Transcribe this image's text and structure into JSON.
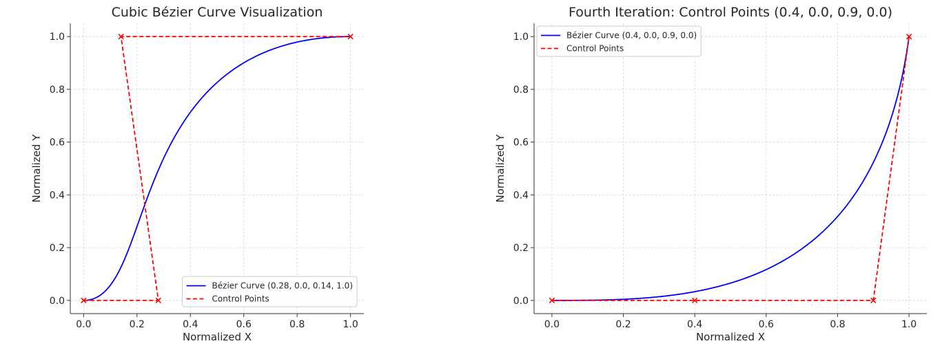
{
  "chart_data": [
    {
      "type": "line",
      "title": "Cubic Bézier Curve Visualization",
      "xlabel": "Normalized X",
      "ylabel": "Normalized Y",
      "xlim": [
        -0.05,
        1.05
      ],
      "ylim": [
        -0.05,
        1.05
      ],
      "xticks": [
        "0.0",
        "0.2",
        "0.4",
        "0.6",
        "0.8",
        "1.0"
      ],
      "yticks": [
        "0.0",
        "0.2",
        "0.4",
        "0.6",
        "0.8",
        "1.0"
      ],
      "grid": true,
      "legend_position": "lower-right",
      "series": [
        {
          "name": "Bézier Curve (0.28, 0.0, 0.14, 1.0)",
          "kind": "bezier",
          "color": "#0000ff",
          "control": [
            [
              0,
              0
            ],
            [
              0.28,
              0.0
            ],
            [
              0.14,
              1.0
            ],
            [
              1,
              1
            ]
          ]
        },
        {
          "name": "Control Points",
          "kind": "control-polygon",
          "color": "#ff0000",
          "marker": "x",
          "points": [
            [
              0,
              0
            ],
            [
              0.28,
              0.0
            ],
            [
              0.14,
              1.0
            ],
            [
              1,
              1
            ]
          ]
        }
      ]
    },
    {
      "type": "line",
      "title": "Fourth Iteration: Control Points (0.4, 0.0, 0.9, 0.0)",
      "xlabel": "Normalized X",
      "ylabel": "Normalized Y",
      "xlim": [
        -0.05,
        1.05
      ],
      "ylim": [
        -0.05,
        1.05
      ],
      "xticks": [
        "0.0",
        "0.2",
        "0.4",
        "0.6",
        "0.8",
        "1.0"
      ],
      "yticks": [
        "0.0",
        "0.2",
        "0.4",
        "0.6",
        "0.8",
        "1.0"
      ],
      "grid": true,
      "legend_position": "upper-left",
      "series": [
        {
          "name": "Bézier Curve (0.4, 0.0, 0.9, 0.0)",
          "kind": "bezier",
          "color": "#0000ff",
          "control": [
            [
              0,
              0
            ],
            [
              0.4,
              0.0
            ],
            [
              0.9,
              0.0
            ],
            [
              1,
              1
            ]
          ]
        },
        {
          "name": "Control Points",
          "kind": "control-polygon",
          "color": "#ff0000",
          "marker": "x",
          "points": [
            [
              0,
              0
            ],
            [
              0.4,
              0.0
            ],
            [
              0.9,
              0.0
            ],
            [
              1,
              1
            ]
          ]
        }
      ]
    }
  ]
}
